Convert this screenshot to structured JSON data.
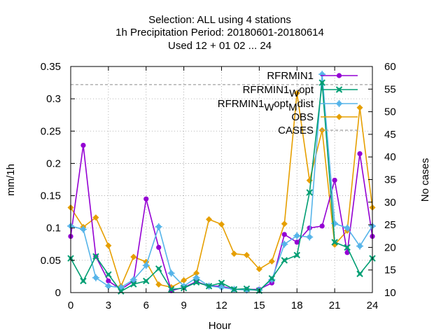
{
  "chart_data": {
    "type": "line",
    "title_lines": [
      "Selection: ALL using     4 stations",
      "1h Precipitation   Period: 20180601-20180614",
      "Used  12 + 01 02 ... 24"
    ],
    "xlabel": "Hour",
    "ylabel": "mm/1h",
    "y2label": "No cases",
    "xlim": [
      0,
      24
    ],
    "ylim": [
      0,
      0.35
    ],
    "y2lim": [
      10,
      60
    ],
    "x_ticks": [
      0,
      3,
      6,
      9,
      12,
      15,
      18,
      21,
      24
    ],
    "y_ticks": [
      "0",
      "0.05",
      "0.1",
      "0.15",
      "0.2",
      "0.25",
      "0.3",
      "0.35"
    ],
    "y2_ticks": [
      "10",
      "15",
      "20",
      "25",
      "30",
      "35",
      "40",
      "45",
      "50",
      "55",
      "60"
    ],
    "grid": true,
    "legend_position": "top-right",
    "x": [
      0,
      1,
      2,
      3,
      4,
      5,
      6,
      7,
      8,
      9,
      10,
      11,
      12,
      13,
      14,
      15,
      16,
      17,
      18,
      19,
      20,
      21,
      22,
      23,
      24
    ],
    "series": [
      {
        "name": "RFRMIN1",
        "color": "#9400d3",
        "marker": "circle",
        "values": [
          0.087,
          0.228,
          0.056,
          0.018,
          0.005,
          0.018,
          0.145,
          0.07,
          0.003,
          0.008,
          0.017,
          0.01,
          0.01,
          0.005,
          0.005,
          0.005,
          0.015,
          0.09,
          0.078,
          0.1,
          0.103,
          0.174,
          0.062,
          0.215,
          0.087
        ]
      },
      {
        "name_main": "RFRMIN1",
        "name_sub": "W",
        "name_tail": "opt",
        "color": "#009e73",
        "marker": "cross",
        "values": [
          0.053,
          0.018,
          0.056,
          0.028,
          0.002,
          0.013,
          0.018,
          0.037,
          0.005,
          0.007,
          0.016,
          0.01,
          0.015,
          0.005,
          0.006,
          0.003,
          0.022,
          0.05,
          0.058,
          0.155,
          0.325,
          0.078,
          0.07,
          0.029,
          0.053
        ]
      },
      {
        "name_main": "RFRMIN1",
        "name_sub": "W",
        "name_mid": "opt",
        "name_sub2": "M",
        "name_tail": "dist",
        "color": "#56b4e9",
        "marker": "star",
        "values": [
          0.103,
          0.098,
          0.023,
          0.01,
          0.008,
          0.02,
          0.042,
          0.102,
          0.03,
          0.01,
          0.023,
          0.01,
          0.008,
          0.005,
          0.004,
          0.004,
          0.02,
          0.075,
          0.088,
          0.086,
          0.338,
          0.107,
          0.1,
          0.072,
          0.103
        ]
      },
      {
        "name": "OBS",
        "color": "#e69f00",
        "marker": "diamond",
        "values_axis": "y2",
        "values": [
          28.8,
          24.5,
          26.6,
          20.4,
          11.4,
          17.9,
          16.8,
          11.8,
          11.2,
          12.7,
          14.3,
          26.2,
          25.1,
          18.6,
          18.3,
          15.2,
          16.9,
          25.2,
          54.1,
          34.8,
          45.9,
          20.6,
          23.7,
          50.9,
          28.8
        ]
      },
      {
        "name": "CASES",
        "color": "#a0a0a0",
        "line": "dashed",
        "values_axis": "y2",
        "values": [
          56,
          56,
          56,
          56,
          56,
          56,
          56,
          56,
          56,
          56,
          56,
          56,
          56,
          56,
          56,
          56,
          56,
          56,
          56,
          56,
          56,
          56,
          56,
          56,
          56
        ]
      }
    ]
  }
}
